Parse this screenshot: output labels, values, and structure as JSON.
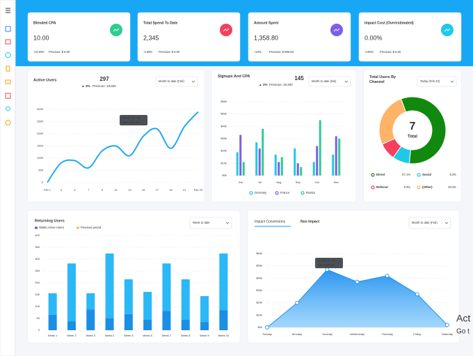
{
  "cards": [
    {
      "title": "Blended CPA",
      "value": "10.00",
      "change": "-10.49%",
      "previous": "Previous: $ 6.00",
      "icon_color": "#2ecc8f",
      "change_color": "#2ecc8f"
    },
    {
      "title": "Total Spend To Date",
      "value": "2,345",
      "change": "-3.48%",
      "previous": "Previous: $ 5.00",
      "icon_color": "#f5405e",
      "change_color": "#f5405e"
    },
    {
      "title": "Amount Spent",
      "value": "1,358.80",
      "change": "+10%",
      "previous": "Previous: $ 990.50",
      "icon_color": "#7b5fe6",
      "change_color": "#2ecc8f"
    },
    {
      "title": "Impact Cost (Overestimated)",
      "value": "0.00%",
      "change": "+100%",
      "previous": "Previous: $ 5.00",
      "icon_color": "#1ec9e8",
      "change_color": "#f5405e"
    }
  ],
  "chart_data": [
    {
      "type": "line",
      "title": "Active Users",
      "total": "297",
      "change": "3%",
      "previous": "Previous: 18,600",
      "dropdown": "Month to date (Feb)",
      "categories": [
        "Feb 1",
        "3",
        "5",
        "7",
        "9",
        "11",
        "13",
        "15",
        "17",
        "19",
        "21",
        "Feb 23"
      ],
      "values": [
        0,
        800,
        900,
        600,
        1300,
        1500,
        1100,
        1900,
        2200,
        1400,
        2300,
        2900
      ],
      "color": "#1eaaf1",
      "ylim": [
        0,
        3000
      ],
      "yticks": [
        0,
        500,
        1000,
        1500,
        2000,
        2500,
        3000
      ],
      "grid": true,
      "tooltip": [
        "15 Feb, '21 · 40",
        "Sales: $45,000"
      ]
    },
    {
      "type": "bar",
      "title": "Signups And CPA",
      "total": "145",
      "change": "2%",
      "previous": "Previous: 18,400",
      "dropdown": "Month to date (feb)",
      "categories": [
        "Jun",
        "Jul",
        "Aug",
        "Sep",
        "Oct",
        "Nov"
      ],
      "series": [
        {
          "name": "Germany",
          "color": "#1ec9e8",
          "values": [
            19,
            27,
            17,
            22,
            11,
            17
          ]
        },
        {
          "name": "France",
          "color": "#7b5fe6",
          "values": [
            33,
            22,
            11,
            10,
            24,
            32
          ]
        },
        {
          "name": "Russia",
          "color": "#2ecc8f",
          "values": [
            11,
            38,
            15,
            7,
            45,
            30
          ]
        }
      ],
      "ylim": [
        0,
        60
      ],
      "yticks": [
        {
          "value": 0,
          "label": "$0k"
        },
        {
          "value": 10,
          "label": "$10k"
        },
        {
          "value": 20,
          "label": "$20k"
        },
        {
          "value": 30,
          "label": "$30k"
        },
        {
          "value": 40,
          "label": "$40k"
        },
        {
          "value": 50,
          "label": "$50k"
        },
        {
          "value": 60,
          "label": "$60k"
        }
      ],
      "grid": true
    },
    {
      "type": "pie",
      "title": "Total Users By Channel",
      "dropdown": "Today (Feb 23)",
      "center_value": "7",
      "center_label": "Total",
      "categories": [
        "Direct",
        "Social",
        "Referral",
        "(Other)"
      ],
      "values": [
        57.1,
        8.3,
        8.3,
        26.3
      ],
      "value_labels": [
        "57.1%",
        "8.3%",
        "8.3%",
        "26.3%"
      ],
      "colors": [
        "#12880f",
        "#1ec9e8",
        "#f5405e",
        "#ffb366"
      ]
    },
    {
      "type": "stacked_bar",
      "title": "Returning Users",
      "dropdown": "Week to date",
      "categories": [
        "Week 1",
        "Week 2",
        "Week 3",
        "Week 4",
        "Week 5",
        "Week 6",
        "Week 7",
        "Week 8",
        "Week 9",
        "Week 10"
      ],
      "series": [
        {
          "name": "Wallet Active Users",
          "color": "#1a8fe3",
          "legend_color": "#6658dd",
          "values": [
            65,
            38,
            88,
            50,
            68,
            44,
            82,
            44,
            35,
            85
          ]
        },
        {
          "name": "Previous period",
          "color": "#2bb8f6",
          "legend_color": "#ffb366",
          "values": [
            91,
            244,
            68,
            274,
            147,
            118,
            200,
            171,
            109,
            239
          ]
        }
      ],
      "ylim": [
        0,
        400
      ],
      "yticks": [
        0,
        50,
        100,
        150,
        200,
        250,
        300,
        350,
        400
      ],
      "grid": true
    },
    {
      "type": "area",
      "tabs": [
        "Impact Conversions",
        "Non Impact"
      ],
      "dropdown": "Month to date (Feb)",
      "categories": [
        "Sunday",
        "Monday",
        "Tuesday",
        "Wednesday",
        "Thursday",
        "Friday",
        "Saturday"
      ],
      "values": [
        0,
        20,
        47,
        37,
        42,
        27,
        2
      ],
      "color": "#1e8ff0",
      "ylim": [
        0,
        60
      ],
      "yticks": [
        {
          "value": 0,
          "label": "$0k"
        },
        {
          "value": 10,
          "label": "$10k"
        },
        {
          "value": 20,
          "label": "$20k"
        },
        {
          "value": 30,
          "label": "$30k"
        },
        {
          "value": 40,
          "label": "$40k"
        },
        {
          "value": 50,
          "label": "$50k"
        },
        {
          "value": 60,
          "label": "$60k"
        }
      ],
      "grid": true,
      "tooltip": [
        "12 Feb, '21 · 40",
        "Sales: $45,000"
      ]
    }
  ],
  "watermark": [
    "Act",
    "Go t"
  ]
}
